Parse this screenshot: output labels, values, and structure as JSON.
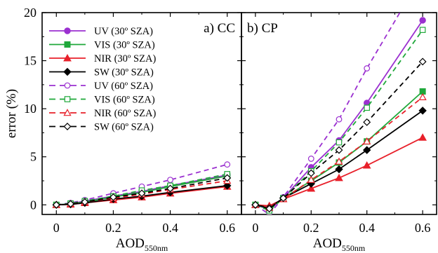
{
  "colors": {
    "uv": "#9b30d0",
    "vis": "#1fa83a",
    "nir": "#e8202a",
    "sw": "#000000"
  },
  "chart_data": {
    "type": "line",
    "ylabel": "error (%)",
    "ylim": [
      -1,
      20
    ],
    "yticks": [
      "0",
      "5",
      "10",
      "15",
      "20"
    ],
    "ytick_values": [
      0,
      5,
      10,
      15,
      20
    ],
    "x": [
      0,
      0.05,
      0.1,
      0.2,
      0.3,
      0.4,
      0.6
    ],
    "xlim": [
      -0.05,
      0.65
    ],
    "xticks": [
      "0",
      "0.2",
      "0.4",
      "0.6"
    ],
    "xtick_values": [
      0,
      0.2,
      0.4,
      0.6
    ],
    "legend_placement": "top-left of panel a",
    "panels": [
      {
        "title": "a) CC",
        "xlabel_main": "AOD",
        "xlabel_sub": "550nm",
        "series": [
          {
            "name": "UV (30º SZA)",
            "color": "uv",
            "style": "solid",
            "marker": "filled-circle",
            "values": [
              0,
              0.1,
              0.4,
              0.9,
              1.4,
              2.0,
              3.1
            ]
          },
          {
            "name": "VIS (30º SZA)",
            "color": "vis",
            "style": "solid",
            "marker": "filled-square",
            "values": [
              0,
              0.1,
              0.3,
              0.8,
              1.3,
              1.9,
              3.0
            ]
          },
          {
            "name": "NIR (30º SZA)",
            "color": "nir",
            "style": "solid",
            "marker": "filled-triangle",
            "values": [
              0,
              0.05,
              0.2,
              0.5,
              0.8,
              1.2,
              1.9
            ]
          },
          {
            "name": "SW (30º SZA)",
            "color": "sw",
            "style": "solid",
            "marker": "filled-diamond",
            "values": [
              0,
              0.05,
              0.2,
              0.6,
              0.9,
              1.3,
              2.0
            ]
          },
          {
            "name": "UV (60º SZA)",
            "color": "uv",
            "style": "dashed",
            "marker": "open-circle",
            "values": [
              0,
              0.2,
              0.5,
              1.2,
              1.9,
              2.6,
              4.2
            ]
          },
          {
            "name": "VIS (60º SZA)",
            "color": "vis",
            "style": "dashed",
            "marker": "open-square",
            "values": [
              0,
              0.15,
              0.4,
              0.9,
              1.5,
              2.0,
              3.2
            ]
          },
          {
            "name": "NIR (60º SZA)",
            "color": "nir",
            "style": "dashed",
            "marker": "open-triangle",
            "values": [
              0,
              0.1,
              0.3,
              0.7,
              1.1,
              1.6,
              2.5
            ]
          },
          {
            "name": "SW (60º SZA)",
            "color": "sw",
            "style": "dashed",
            "marker": "open-diamond",
            "values": [
              0,
              0.1,
              0.3,
              0.8,
              1.2,
              1.7,
              2.8
            ]
          }
        ]
      },
      {
        "title": "b) CP",
        "xlabel_main": "AOD",
        "xlabel_sub": "550nm",
        "series": [
          {
            "name": "UV (30º SZA)",
            "color": "uv",
            "style": "solid",
            "marker": "filled-circle",
            "values": [
              0,
              -0.5,
              0.7,
              3.9,
              6.7,
              10.6,
              19.2
            ]
          },
          {
            "name": "VIS (30º SZA)",
            "color": "vis",
            "style": "solid",
            "marker": "filled-square",
            "values": [
              0,
              -0.4,
              0.7,
              2.5,
              4.4,
              6.6,
              11.8
            ]
          },
          {
            "name": "NIR (30º SZA)",
            "color": "nir",
            "style": "solid",
            "marker": "filled-triangle",
            "values": [
              0,
              -0.1,
              0.6,
              1.7,
              2.8,
              4.1,
              7.0
            ]
          },
          {
            "name": "SW (30º SZA)",
            "color": "sw",
            "style": "solid",
            "marker": "filled-diamond",
            "values": [
              0,
              -0.3,
              0.7,
              2.2,
              3.7,
              5.7,
              9.8
            ]
          },
          {
            "name": "UV (60º SZA)",
            "color": "uv",
            "style": "dashed",
            "marker": "open-circle",
            "values": [
              0,
              -1.0,
              0.8,
              4.8,
              8.9,
              14.2,
              24.0
            ]
          },
          {
            "name": "VIS (60º SZA)",
            "color": "vis",
            "style": "dashed",
            "marker": "open-square",
            "values": [
              0,
              -0.6,
              0.7,
              3.5,
              6.5,
              10.1,
              18.2
            ]
          },
          {
            "name": "NIR (60º SZA)",
            "color": "nir",
            "style": "dashed",
            "marker": "open-triangle",
            "values": [
              0,
              -0.3,
              0.6,
              2.6,
              4.5,
              6.6,
              11.2
            ]
          },
          {
            "name": "SW (60º SZA)",
            "color": "sw",
            "style": "dashed",
            "marker": "open-diamond",
            "values": [
              0,
              -0.4,
              0.7,
              3.3,
              5.7,
              8.6,
              14.9
            ]
          }
        ]
      }
    ]
  }
}
